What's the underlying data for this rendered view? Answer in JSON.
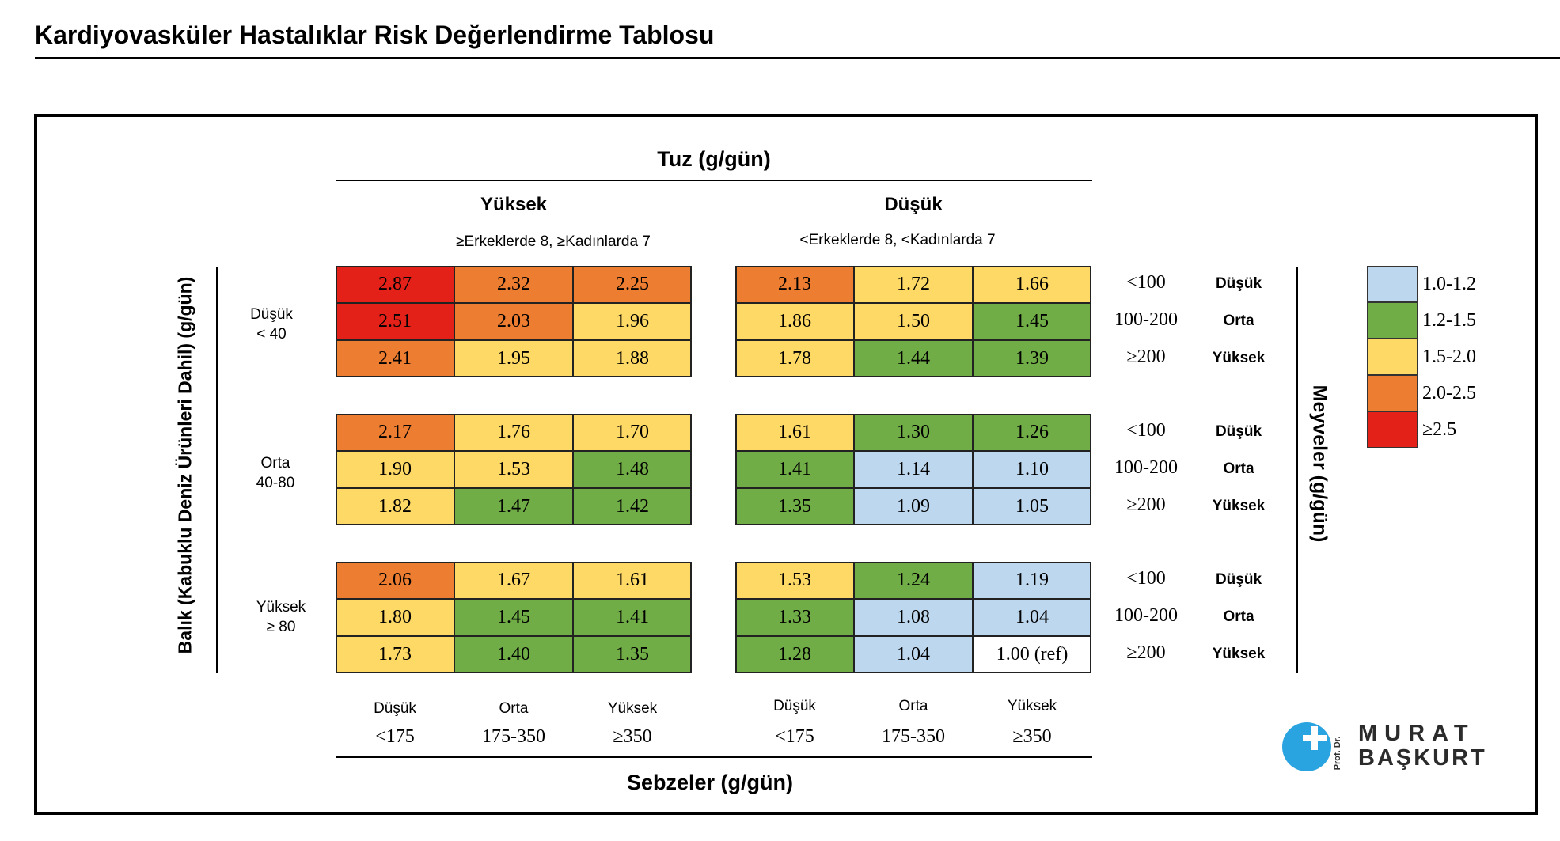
{
  "page_title": "Kardiyovasküler Hastalıklar Risk Değerlendirme Tablosu",
  "chart_data": {
    "type": "heatmap",
    "title": "Tuz (g/gün)",
    "xlabel": "Sebzeler (g/gün)",
    "ylabel_left": "Balık (Kabuklu Deniz Ürünleri Dahil) (g/gün)",
    "ylabel_right": "Meyveler (g/gün)",
    "salt_groups": [
      {
        "name": "Yüksek",
        "criteria": "≥Erkeklerde 8, ≥Kadınlarda 7"
      },
      {
        "name": "Düşük",
        "criteria": "<Erkeklerde 8, <Kadınlarda 7"
      }
    ],
    "fish_groups": [
      {
        "label": "Düşük\n< 40"
      },
      {
        "label": "Orta\n40-80"
      },
      {
        "label": "Yüksek\n≥ 80"
      }
    ],
    "fruit_levels": [
      {
        "range": "<100",
        "level": "Düşük"
      },
      {
        "range": "100-200",
        "level": "Orta"
      },
      {
        "range": "≥200",
        "level": "Yüksek"
      }
    ],
    "vegetable_levels": [
      [
        {
          "level": "Düşük",
          "range": "<175"
        },
        {
          "level": "Orta",
          "range": "175-350"
        },
        {
          "level": "Yüksek",
          "range": "≥350"
        }
      ],
      [
        {
          "level": "Düşük",
          "range": "<175"
        },
        {
          "level": "Orta",
          "range": "175-350"
        },
        {
          "level": "Yüksek",
          "range": "≥350"
        }
      ]
    ],
    "values": [
      [
        [
          [
            "2.87",
            "2.32",
            "2.25"
          ],
          [
            "2.51",
            "2.03",
            "1.96"
          ],
          [
            "2.41",
            "1.95",
            "1.88"
          ]
        ],
        [
          [
            "2.17",
            "1.76",
            "1.70"
          ],
          [
            "1.90",
            "1.53",
            "1.48"
          ],
          [
            "1.82",
            "1.47",
            "1.42"
          ]
        ],
        [
          [
            "2.06",
            "1.67",
            "1.61"
          ],
          [
            "1.80",
            "1.45",
            "1.41"
          ],
          [
            "1.73",
            "1.40",
            "1.35"
          ]
        ]
      ],
      [
        [
          [
            "2.13",
            "1.72",
            "1.66"
          ],
          [
            "1.86",
            "1.50",
            "1.45"
          ],
          [
            "1.78",
            "1.44",
            "1.39"
          ]
        ],
        [
          [
            "1.61",
            "1.30",
            "1.26"
          ],
          [
            "1.41",
            "1.14",
            "1.10"
          ],
          [
            "1.35",
            "1.09",
            "1.05"
          ]
        ],
        [
          [
            "1.53",
            "1.24",
            "1.19"
          ],
          [
            "1.33",
            "1.08",
            "1.04"
          ],
          [
            "1.28",
            "1.04",
            "1.00 (ref)"
          ]
        ]
      ]
    ],
    "legend": [
      {
        "label": "1.0-1.2",
        "color": "#bdd7ee",
        "min": 1.0,
        "max": 1.2
      },
      {
        "label": "1.2-1.5",
        "color": "#70ad47",
        "min": 1.2,
        "max": 1.5
      },
      {
        "label": "1.5-2.0",
        "color": "#ffd966",
        "min": 1.5,
        "max": 2.0
      },
      {
        "label": "2.0-2.5",
        "color": "#ed7d31",
        "min": 2.0,
        "max": 2.5
      },
      {
        "label": "≥2.5",
        "color": "#e32119",
        "min": 2.5,
        "max": 99
      }
    ],
    "reference_color": "#ffffff"
  },
  "logo": {
    "prefix": "Prof. Dr.",
    "first_name": "MURAT",
    "last_name": "BAŞKURT",
    "color": "#2aa4e0"
  }
}
